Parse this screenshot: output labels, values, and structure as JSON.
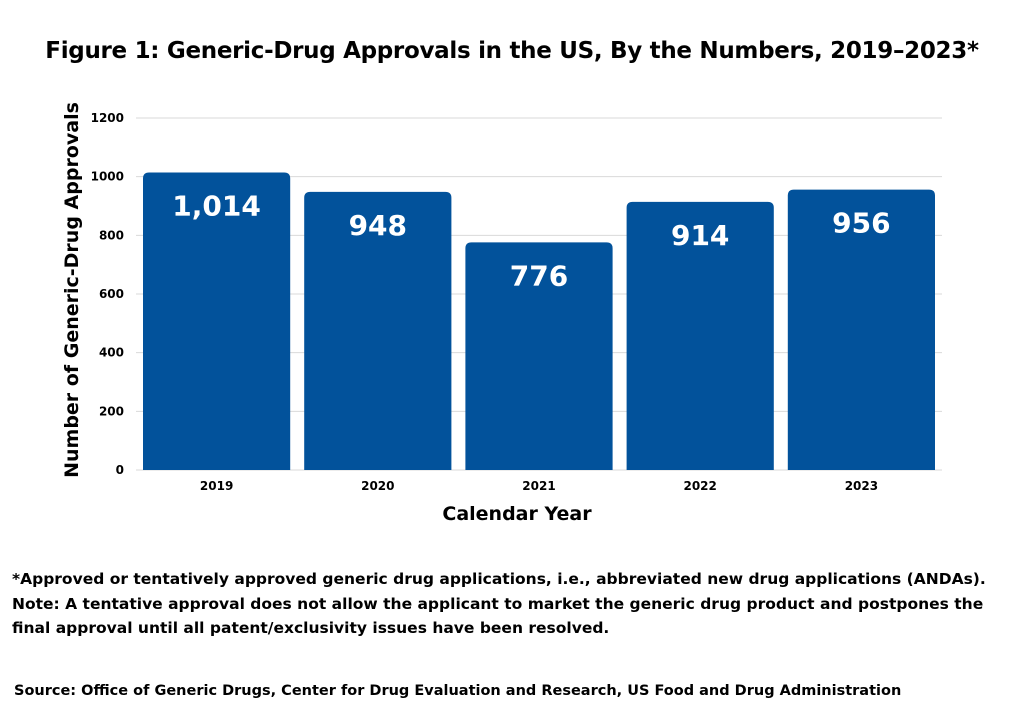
{
  "chart_data": {
    "type": "bar",
    "title": "Figure 1: Generic-Drug Approvals in the US, By the Numbers, 2019–2023*",
    "xlabel": "Calendar Year",
    "ylabel": "Number of Generic-Drug Approvals",
    "categories": [
      "2019",
      "2020",
      "2021",
      "2022",
      "2023"
    ],
    "values": [
      1014,
      948,
      776,
      914,
      956
    ],
    "data_labels": [
      "1,014",
      "948",
      "776",
      "914",
      "956"
    ],
    "y_ticks": [
      "0",
      "200",
      "400",
      "600",
      "800",
      "1000",
      "1200"
    ],
    "ylim": [
      0,
      1200
    ],
    "grid": true,
    "bar_color": "#02529b",
    "grid_color": "#d9d9d9"
  },
  "footnote": {
    "line1": "*Approved or tentatively approved generic drug applications, i.e., abbreviated new drug applications (ANDAs).",
    "line2": "Note: A tentative approval does not allow the applicant to market the generic drug product and postpones the final approval until all patent/exclusivity issues have been resolved."
  },
  "source": "Source: Office of Generic Drugs, Center for Drug Evaluation and Research, US Food and Drug Administration"
}
